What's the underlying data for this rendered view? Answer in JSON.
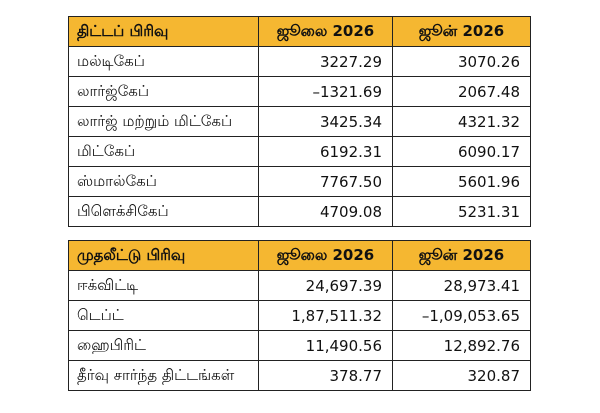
{
  "scheme_table": {
    "headers": [
      "திட்டப் பிரிவு",
      "ஜூலை 2026",
      "ஜூன் 2026"
    ],
    "rows": [
      [
        "மல்டிகேப்",
        "3227.29",
        "3070.26"
      ],
      [
        "லார்ஜ்கேப்",
        "–1321.69",
        "2067.48"
      ],
      [
        "லார்ஜ் மற்றும் மிட்கேப்",
        "3425.34",
        "4321.32"
      ],
      [
        "மிட்கேப்",
        "6192.31",
        "6090.17"
      ],
      [
        "ஸ்மால்கேப்",
        "7767.50",
        "5601.96"
      ],
      [
        "பிளெக்சிகேப்",
        "4709.08",
        "5231.31"
      ]
    ]
  },
  "investment_table": {
    "headers": [
      "முதலீட்டு பிரிவு",
      "ஜூலை 2026",
      "ஜூன் 2026"
    ],
    "rows": [
      [
        "ஈக்விட்டி",
        "24,697.39",
        "28,973.41"
      ],
      [
        "டெப்ட்",
        "1,87,511.32",
        "–1,09,053.65"
      ],
      [
        "ஹைபிரிட்",
        "11,490.56",
        "12,892.76"
      ],
      [
        "தீர்வு சார்ந்த திட்டங்கள்",
        "378.77",
        "320.87"
      ]
    ]
  },
  "colors": {
    "header_bg": "#f5b731",
    "border": "#222222"
  }
}
